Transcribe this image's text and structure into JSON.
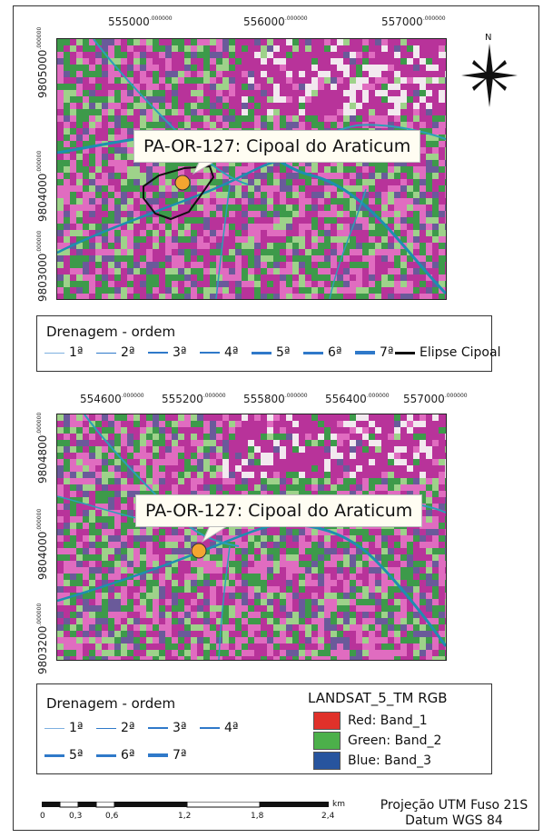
{
  "colors": {
    "magenta": "#b8339a",
    "pink": "#e06cc0",
    "green": "#3d9a4a",
    "lightgreen": "#9ed28a",
    "cyan": "#1d8fb0",
    "white": "#f2e9ef",
    "bluegray": "#6a5a9a",
    "drainage": "#2f79c9",
    "ellipse": "#111111",
    "marker": "#f4a530"
  },
  "map1": {
    "xticks": [
      "555000",
      "556000",
      "557000"
    ],
    "yticks": [
      "9805000",
      "9804000",
      "9803000"
    ],
    "decimal": ".000000",
    "callout": "PA-OR-127: Cipoal do Araticum",
    "north": "N"
  },
  "legend1": {
    "title": "Drenagem - ordem",
    "items": [
      "1ª",
      "2ª",
      "3ª",
      "4ª",
      "5ª",
      "6ª",
      "7ª"
    ],
    "ellipse": "Elipse Cipoal"
  },
  "map2": {
    "xticks": [
      "554600",
      "555200",
      "555800",
      "556400",
      "557000"
    ],
    "yticks": [
      "9804800",
      "9804000",
      "9803200"
    ],
    "decimal": ".000000",
    "callout": "PA-OR-127: Cipoal do Araticum"
  },
  "legend2": {
    "title": "Drenagem - ordem",
    "items": [
      "1ª",
      "2ª",
      "3ª",
      "4ª",
      "5ª",
      "6ª",
      "7ª"
    ],
    "rgb_title": "LANDSAT_5_TM RGB",
    "bands": [
      {
        "label": "Red: Band_1",
        "color": "#e0312a"
      },
      {
        "label": "Green: Band_2",
        "color": "#4cb04a"
      },
      {
        "label": "Blue: Band_3",
        "color": "#27549e"
      }
    ]
  },
  "scalebar": {
    "labels": [
      "0",
      "0,3",
      "0,6",
      "1,2",
      "1,8",
      "2,4"
    ],
    "unit": "km"
  },
  "projection": {
    "line1": "Projeção UTM Fuso 21S",
    "line2": "Datum WGS 84"
  }
}
